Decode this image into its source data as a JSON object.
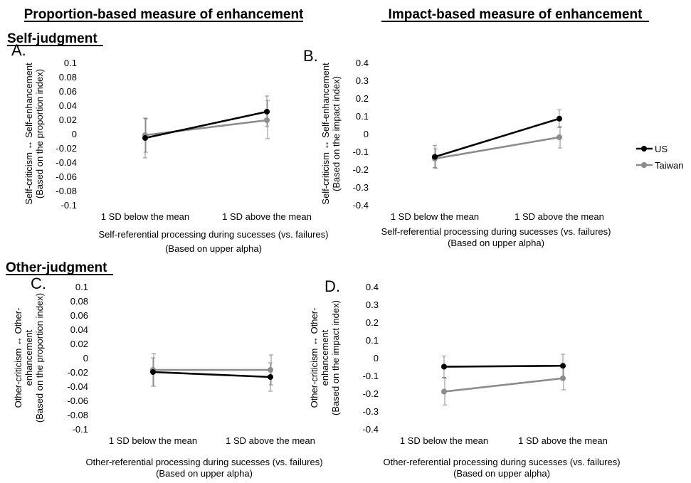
{
  "headers": {
    "left": "Proportion-based measure of enhancement",
    "right": "Impact-based measure of enhancement",
    "self": "Self-judgment",
    "other": "Other-judgment"
  },
  "legend": [
    {
      "name": "US",
      "color": "#000000"
    },
    {
      "name": "Taiwan",
      "color": "#8c8c8c"
    }
  ],
  "colors": {
    "US": "#000000",
    "Taiwan": "#8c8c8c",
    "error_bar": "#8c8c8c"
  },
  "chart_data": [
    {
      "type": "line",
      "panel_label": "A.",
      "categories": [
        "1 SD below the mean",
        "1 SD above the mean"
      ],
      "ylim": [
        -0.1,
        0.1
      ],
      "yticks": [
        "0.1",
        "0.08",
        "0.06",
        "0.04",
        "0.02",
        "0",
        "-0.02",
        "-0.04",
        "-0.06",
        "-0.08",
        "-0.1"
      ],
      "ylabel": [
        "Self-criticism ↔ Self-enhancement",
        "(Based on the proportion index)"
      ],
      "xlabel": [
        "Self-referential processing during sucesses (vs. failures)",
        "(Based on upper alpha)"
      ],
      "series": [
        {
          "name": "US",
          "values": [
            -0.006,
            0.031
          ],
          "err_low": [
            -0.034,
            0.01
          ],
          "err_high": [
            0.022,
            0.053
          ]
        },
        {
          "name": "Taiwan",
          "values": [
            -0.002,
            0.019
          ],
          "err_low": [
            -0.026,
            -0.007
          ],
          "err_high": [
            0.021,
            0.047
          ]
        }
      ]
    },
    {
      "type": "line",
      "panel_label": "B.",
      "categories": [
        "1 SD below the mean",
        "1 SD above the mean"
      ],
      "ylim": [
        -0.4,
        0.4
      ],
      "yticks": [
        "0.4",
        "0.3",
        "0.2",
        "0.1",
        "0",
        "-0.1",
        "-0.2",
        "-0.3",
        "-0.4"
      ],
      "ylabel": [
        "Self-criticism ↔ Self-enhancement",
        "(Based on the impact index)"
      ],
      "xlabel": [
        "Self-referential processing during sucesses (vs. failures)",
        "(Based on upper alpha)"
      ],
      "series": [
        {
          "name": "US",
          "values": [
            -0.13,
            0.085
          ],
          "err_low": [
            -0.19,
            0.035
          ],
          "err_high": [
            -0.065,
            0.135
          ]
        },
        {
          "name": "Taiwan",
          "values": [
            -0.14,
            -0.02
          ],
          "err_low": [
            -0.195,
            -0.08
          ],
          "err_high": [
            -0.085,
            0.04
          ]
        }
      ]
    },
    {
      "type": "line",
      "panel_label": "C.",
      "categories": [
        "1 SD below the mean",
        "1 SD above the mean"
      ],
      "ylim": [
        -0.1,
        0.1
      ],
      "yticks": [
        "0.1",
        "0.08",
        "0.06",
        "0.04",
        "0.02",
        "0",
        "-0.02",
        "-0.04",
        "-0.06",
        "-0.08",
        "-0.1"
      ],
      "ylabel": [
        "Other-criticism ↔ Other-",
        "enhancement",
        "(Based on the proportion index)"
      ],
      "xlabel": [
        "Other-referential processing during sucesses (vs. failures)",
        "(Based on upper alpha)"
      ],
      "series": [
        {
          "name": "US",
          "values": [
            -0.02,
            -0.027
          ],
          "err_low": [
            -0.04,
            -0.047
          ],
          "err_high": [
            0.0,
            -0.007
          ]
        },
        {
          "name": "Taiwan",
          "values": [
            -0.017,
            -0.017
          ],
          "err_low": [
            -0.04,
            -0.038
          ],
          "err_high": [
            0.006,
            0.004
          ]
        }
      ]
    },
    {
      "type": "line",
      "panel_label": "D.",
      "categories": [
        "1 SD below the mean",
        "1 SD above the mean"
      ],
      "ylim": [
        -0.4,
        0.4
      ],
      "yticks": [
        "0.4",
        "0.3",
        "0.2",
        "0.1",
        "0",
        "-0.1",
        "-0.2",
        "-0.3",
        "-0.4"
      ],
      "ylabel": [
        "Other-criticism ↔ Other-",
        "enhancement",
        "(Based on the impact index)"
      ],
      "xlabel": [
        "Other-referential processing during sucesses (vs. failures)",
        "(Based on upper alpha)"
      ],
      "series": [
        {
          "name": "US",
          "values": [
            -0.05,
            -0.045
          ],
          "err_low": [
            -0.11,
            -0.105
          ],
          "err_high": [
            0.01,
            0.02
          ]
        },
        {
          "name": "Taiwan",
          "values": [
            -0.19,
            -0.115
          ],
          "err_low": [
            -0.265,
            -0.18
          ],
          "err_high": [
            -0.115,
            -0.05
          ]
        }
      ]
    }
  ]
}
